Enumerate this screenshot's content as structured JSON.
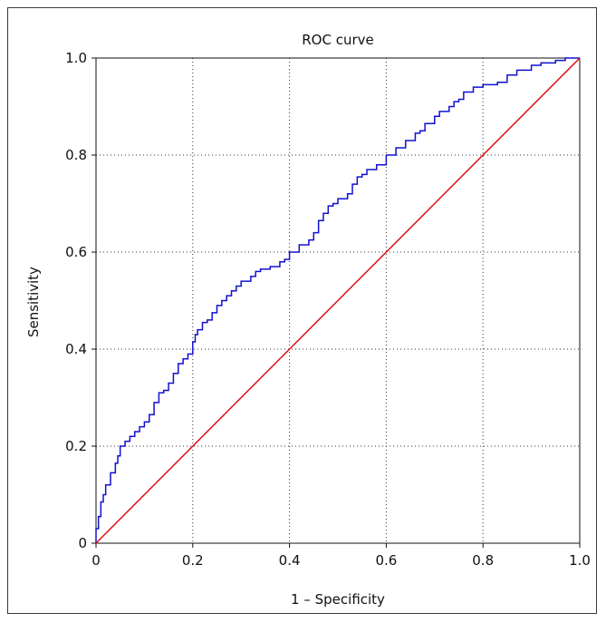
{
  "chart_data": {
    "type": "line",
    "title": "ROC curve",
    "xlabel": "1 – Specificity",
    "ylabel": "Sensitivity",
    "xlim": [
      0,
      1.0
    ],
    "ylim": [
      0,
      1.0
    ],
    "grid": true,
    "x_ticks": [
      {
        "value": 0,
        "label": "0"
      },
      {
        "value": 0.2,
        "label": "0.2"
      },
      {
        "value": 0.4,
        "label": "0.4"
      },
      {
        "value": 0.6,
        "label": "0.6"
      },
      {
        "value": 0.8,
        "label": "0.8"
      },
      {
        "value": 1.0,
        "label": "1.0"
      }
    ],
    "y_ticks": [
      {
        "value": 0,
        "label": "0"
      },
      {
        "value": 0.2,
        "label": "0.2"
      },
      {
        "value": 0.4,
        "label": "0.4"
      },
      {
        "value": 0.6,
        "label": "0.6"
      },
      {
        "value": 0.8,
        "label": "0.8"
      },
      {
        "value": 1.0,
        "label": "1.0"
      }
    ],
    "series": [
      {
        "color": "#1010d0",
        "step": true,
        "points": [
          [
            0.0,
            0.0
          ],
          [
            0.005,
            0.03
          ],
          [
            0.01,
            0.055
          ],
          [
            0.015,
            0.085
          ],
          [
            0.02,
            0.1
          ],
          [
            0.03,
            0.12
          ],
          [
            0.04,
            0.145
          ],
          [
            0.045,
            0.165
          ],
          [
            0.05,
            0.18
          ],
          [
            0.06,
            0.2
          ],
          [
            0.07,
            0.21
          ],
          [
            0.08,
            0.22
          ],
          [
            0.09,
            0.23
          ],
          [
            0.1,
            0.24
          ],
          [
            0.11,
            0.25
          ],
          [
            0.12,
            0.265
          ],
          [
            0.13,
            0.29
          ],
          [
            0.14,
            0.31
          ],
          [
            0.15,
            0.315
          ],
          [
            0.16,
            0.33
          ],
          [
            0.17,
            0.35
          ],
          [
            0.18,
            0.37
          ],
          [
            0.19,
            0.38
          ],
          [
            0.2,
            0.39
          ],
          [
            0.205,
            0.415
          ],
          [
            0.21,
            0.43
          ],
          [
            0.22,
            0.44
          ],
          [
            0.23,
            0.455
          ],
          [
            0.24,
            0.46
          ],
          [
            0.25,
            0.475
          ],
          [
            0.26,
            0.49
          ],
          [
            0.27,
            0.5
          ],
          [
            0.28,
            0.51
          ],
          [
            0.29,
            0.52
          ],
          [
            0.3,
            0.53
          ],
          [
            0.32,
            0.54
          ],
          [
            0.33,
            0.55
          ],
          [
            0.34,
            0.56
          ],
          [
            0.36,
            0.565
          ],
          [
            0.38,
            0.57
          ],
          [
            0.39,
            0.58
          ],
          [
            0.4,
            0.585
          ],
          [
            0.42,
            0.6
          ],
          [
            0.44,
            0.615
          ],
          [
            0.45,
            0.625
          ],
          [
            0.46,
            0.64
          ],
          [
            0.47,
            0.665
          ],
          [
            0.48,
            0.68
          ],
          [
            0.49,
            0.695
          ],
          [
            0.5,
            0.7
          ],
          [
            0.52,
            0.71
          ],
          [
            0.53,
            0.72
          ],
          [
            0.54,
            0.74
          ],
          [
            0.55,
            0.755
          ],
          [
            0.56,
            0.76
          ],
          [
            0.58,
            0.77
          ],
          [
            0.6,
            0.78
          ],
          [
            0.62,
            0.8
          ],
          [
            0.64,
            0.815
          ],
          [
            0.66,
            0.83
          ],
          [
            0.67,
            0.845
          ],
          [
            0.68,
            0.85
          ],
          [
            0.7,
            0.865
          ],
          [
            0.71,
            0.88
          ],
          [
            0.73,
            0.89
          ],
          [
            0.74,
            0.9
          ],
          [
            0.75,
            0.91
          ],
          [
            0.76,
            0.915
          ],
          [
            0.78,
            0.93
          ],
          [
            0.8,
            0.94
          ],
          [
            0.83,
            0.945
          ],
          [
            0.85,
            0.95
          ],
          [
            0.87,
            0.965
          ],
          [
            0.9,
            0.975
          ],
          [
            0.92,
            0.985
          ],
          [
            0.95,
            0.99
          ],
          [
            0.97,
            0.995
          ],
          [
            1.0,
            1.0
          ]
        ]
      },
      {
        "color": "#e01010",
        "step": false,
        "points": [
          [
            0.0,
            0.0
          ],
          [
            1.0,
            1.0
          ]
        ]
      }
    ]
  }
}
